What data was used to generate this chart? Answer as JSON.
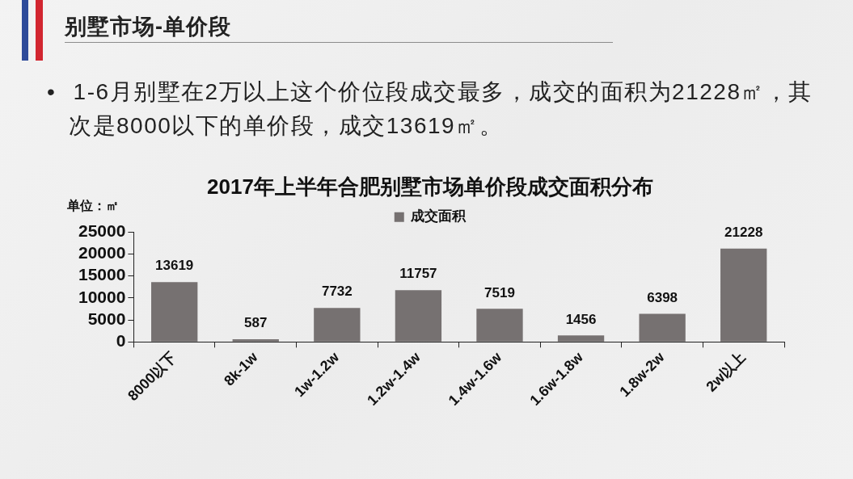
{
  "chart_data": {
    "type": "bar",
    "title": "2017年上半年合肥别墅市场单价段成交面积分布",
    "ylabel": "单位：㎡",
    "annotations": [
      "别墅市场-单价段",
      "• 1-6月别墅在2万以上这个价位段成交最多，成交的面积为21228㎡，其次是8000以下的单价段，成交13619㎡。"
    ],
    "categories": [
      "8000以下",
      "8k-1w",
      "1w-1.2w",
      "1.2w-1.4w",
      "1.4w-1.6w",
      "1.6w-1.8w",
      "1.8w-2w",
      "2w以上"
    ],
    "series": [
      {
        "name": "成交面积",
        "color": "#767171",
        "values": [
          13619,
          587,
          7732,
          11757,
          7519,
          1456,
          6398,
          21228
        ]
      }
    ],
    "ylim": [
      0,
      25000
    ],
    "yticks": [
      0,
      5000,
      10000,
      15000,
      20000,
      25000
    ],
    "grid": false,
    "legend": "top",
    "data_labels": true
  }
}
